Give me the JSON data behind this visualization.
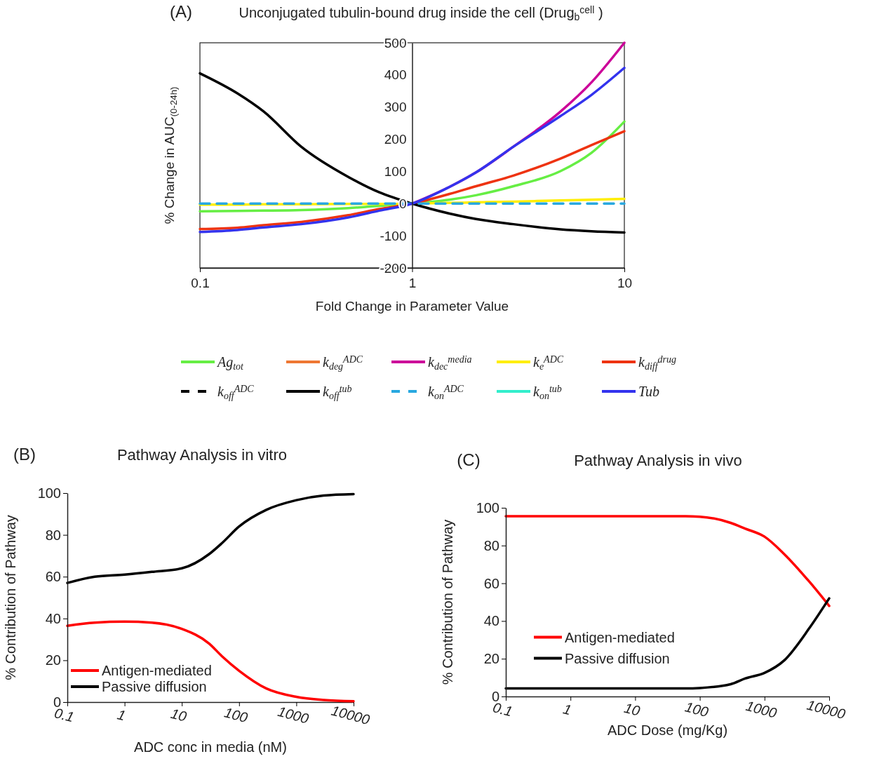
{
  "chart_data": [
    {
      "type": "line",
      "title": "Unconjugated tubulin-bound drug inside the cell (Drug$_{b}$$^{cell}$ )",
      "annotations": [
        "(A)"
      ],
      "xlabel": "Fold Change in Parameter Value",
      "ylabel": "% Change in AUC$_{(0-24h)}$",
      "log": "x",
      "xlim": [
        0.1,
        10
      ],
      "xticks": [
        0.1,
        1,
        10
      ],
      "ylim": [
        -200,
        500
      ],
      "yticks": [
        -200,
        -100,
        0,
        100,
        200,
        300,
        400,
        500
      ],
      "legend": "bottom",
      "x": [
        0.1,
        0.15,
        0.2,
        0.3,
        0.5,
        0.7,
        1,
        1.5,
        2,
        3,
        5,
        7,
        10
      ],
      "series": [
        {
          "name": "Ag$_{tot}$",
          "color": "#66ee44",
          "values": [
            -24,
            -23,
            -22,
            -20,
            -14,
            -7,
            0,
            12,
            26,
            54,
            101,
            158,
            255
          ]
        },
        {
          "name": "k$_{deg}$$^{ADC}$",
          "color": "#ee7733",
          "values": [
            null,
            null,
            null,
            null,
            null,
            null,
            null,
            null,
            null,
            null,
            null,
            null,
            null
          ]
        },
        {
          "name": "k$_{dec}$$^{media}$",
          "color": "#cc0099",
          "values": [
            null,
            null,
            null,
            null,
            null,
            null,
            0,
            52,
            97,
            177,
            286,
            377,
            500
          ]
        },
        {
          "name": "k$_{e}$$^{ADC}$",
          "color": "#ffee00",
          "values": [
            -3,
            -3,
            -2,
            -2,
            -1,
            -1,
            0,
            2,
            4,
            6,
            10,
            12,
            15
          ]
        },
        {
          "name": "k$_{diff}$$^{drug}$",
          "color": "#ee3311",
          "values": [
            -79,
            -75,
            -67,
            -57,
            -36,
            -17,
            0,
            30,
            54,
            87,
            140,
            182,
            225
          ]
        },
        {
          "name": "k$_{off}$$^{ADC}$",
          "color": "#000000",
          "line_style": "dashed",
          "values": [
            null,
            null,
            null,
            null,
            null,
            null,
            null,
            null,
            null,
            null,
            null,
            null,
            null
          ]
        },
        {
          "name": "k$_{off}$$^{tub}$",
          "color": "#000000",
          "values": [
            405,
            343,
            286,
            177,
            83,
            35,
            0,
            -31,
            -48,
            -64,
            -80,
            -86,
            -90
          ]
        },
        {
          "name": "k$_{on}$$^{ADC}$",
          "color": "#29a8e0",
          "line_style": "dashed",
          "values": [
            0,
            0,
            0,
            0,
            0,
            0,
            0,
            0,
            0,
            0,
            0,
            0,
            0
          ]
        },
        {
          "name": "k$_{on}$$^{tub}$",
          "color": "#33eecc",
          "values": [
            null,
            null,
            null,
            null,
            null,
            null,
            null,
            null,
            null,
            null,
            null,
            null,
            null
          ]
        },
        {
          "name": "Tub",
          "color": "#3333ee",
          "values": [
            -88,
            -82,
            -74,
            -64,
            -43,
            -22,
            0,
            52,
            97,
            177,
            272,
            338,
            422
          ]
        }
      ]
    },
    {
      "type": "line",
      "title": "Pathway Analysis in vitro",
      "annotations": [
        "(B)"
      ],
      "xlabel": "ADC conc in media (nM)",
      "ylabel": "% Contribution of Pathway",
      "log": "x",
      "xlim": [
        0.1,
        10000
      ],
      "xticks": [
        0.1,
        1,
        10,
        100,
        1000,
        10000
      ],
      "ylim": [
        0,
        100
      ],
      "yticks": [
        0,
        20,
        40,
        60,
        80,
        100
      ],
      "legend": "bottom left",
      "x": [
        0.1,
        0.3,
        1,
        3,
        10,
        30,
        50,
        100,
        300,
        1000,
        3000,
        10000
      ],
      "series": [
        {
          "name": "Antigen-mediated",
          "color": "#ff0000",
          "values": [
            36.5,
            38,
            38.5,
            38,
            35,
            28,
            22,
            15,
            6.5,
            2.5,
            1,
            0.4
          ]
        },
        {
          "name": "Passive diffusion",
          "color": "#000000",
          "values": [
            57,
            60,
            61,
            62.3,
            64,
            70.8,
            76,
            84,
            92,
            96.6,
            98.8,
            99.5
          ]
        }
      ]
    },
    {
      "type": "line",
      "title": "Pathway Analysis in vivo",
      "annotations": [
        "(C)"
      ],
      "xlabel": "ADC Dose (mg/Kg)",
      "ylabel": "% Contribution of Pathway",
      "log": "x",
      "xlim": [
        0.1,
        10000
      ],
      "xticks": [
        0.1,
        1,
        10,
        100,
        1000,
        10000
      ],
      "ylim": [
        0,
        100
      ],
      "yticks": [
        0,
        20,
        40,
        60,
        80,
        100
      ],
      "legend": "left",
      "x": [
        0.1,
        1,
        10,
        60,
        100,
        300,
        500,
        1000,
        2000,
        5000,
        10000
      ],
      "series": [
        {
          "name": "Antigen-mediated",
          "color": "#ff0000",
          "values": [
            95.5,
            95.5,
            95.5,
            95.5,
            95.3,
            92,
            89,
            84.7,
            75.6,
            60.6,
            48
          ]
        },
        {
          "name": "Passive diffusion",
          "color": "#000000",
          "values": [
            4.3,
            4.3,
            4.3,
            4.3,
            4.5,
            6.5,
            9.5,
            12.5,
            19,
            36.5,
            52
          ]
        }
      ]
    }
  ]
}
